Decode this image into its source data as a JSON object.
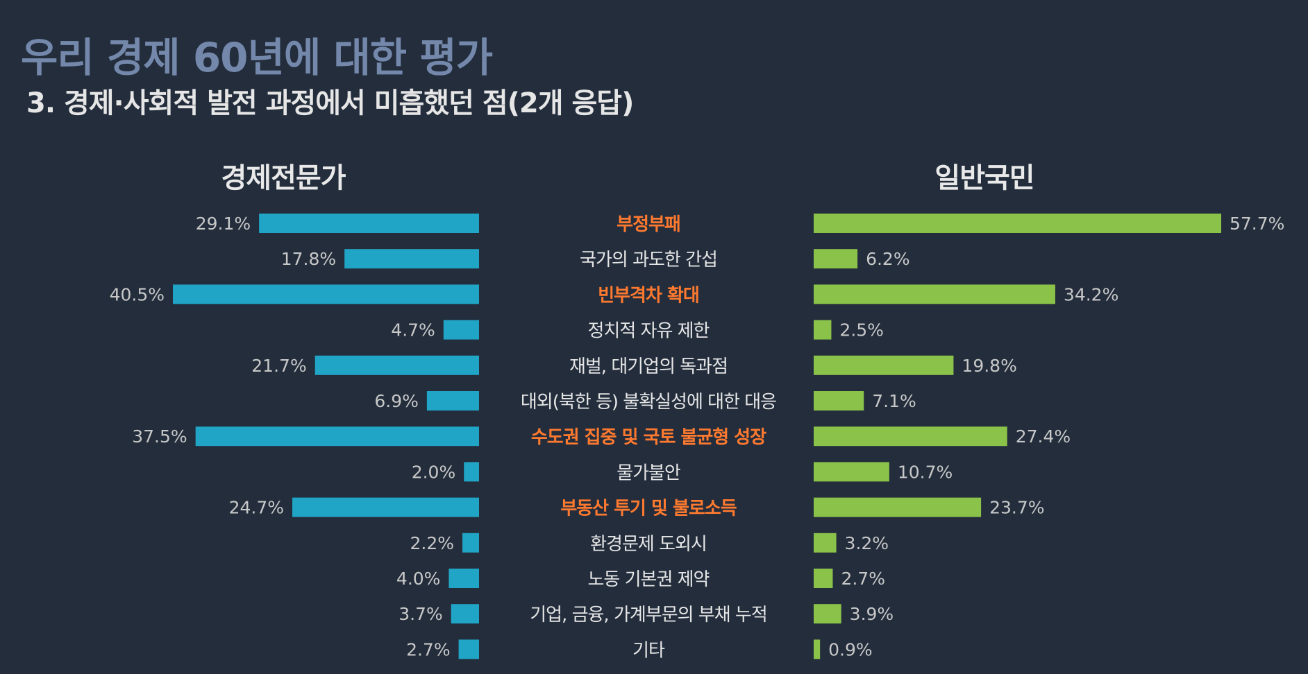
{
  "title": "우리 경제 60년에 대한 평가",
  "subtitle": "3. 경제·사회적 발전 과정에서 미흡했던 점(2개 응답)",
  "colors": {
    "background": "#232d3c",
    "expert_bar": "#21a5c6",
    "public_bar": "#8bc34a",
    "highlight_text": "#ff7a2f",
    "normal_text": "#e6e6e6",
    "value_text": "#c8c8c8",
    "title_text": "#7488ab"
  },
  "chart_data": {
    "type": "bar",
    "orientation": "horizontal-butterfly",
    "unit": "%",
    "categories": [
      "부정부패",
      "국가의 과도한 간섭",
      "빈부격차 확대",
      "정치적 자유 제한",
      "재벌, 대기업의 독과점",
      "대외(북한 등) 불확실성에 대한 대응",
      "수도권 집중 및 국토 불균형 성장",
      "물가불안",
      "부동산 투기 및 불로소득",
      "환경문제 도외시",
      "노동 기본권 제약",
      "기업, 금융, 가계부문의 부채 누적",
      "기타"
    ],
    "highlighted": [
      true,
      false,
      true,
      false,
      false,
      false,
      true,
      false,
      true,
      false,
      false,
      false,
      false
    ],
    "series": [
      {
        "name": "경제전문가",
        "values": [
          29.1,
          17.8,
          40.5,
          4.7,
          21.7,
          6.9,
          37.5,
          2.0,
          24.7,
          2.2,
          4.0,
          3.7,
          2.7
        ],
        "labels": [
          "29.1%",
          "17.8%",
          "40.5%",
          "4.7%",
          "21.7%",
          "6.9%",
          "37.5%",
          "2.0%",
          "24.7%",
          "2.2%",
          "4.0%",
          "3.7%",
          "2.7%"
        ]
      },
      {
        "name": "일반국민",
        "values": [
          57.7,
          6.2,
          34.2,
          2.5,
          19.8,
          7.1,
          27.4,
          10.7,
          23.7,
          3.2,
          2.7,
          3.9,
          0.9
        ],
        "labels": [
          "57.7%",
          "6.2%",
          "34.2%",
          "2.5%",
          "19.8%",
          "7.1%",
          "27.4%",
          "10.7%",
          "23.7%",
          "3.2%",
          "2.7%",
          "3.9%",
          "0.9%"
        ]
      }
    ],
    "grid": false,
    "legend": "none"
  }
}
